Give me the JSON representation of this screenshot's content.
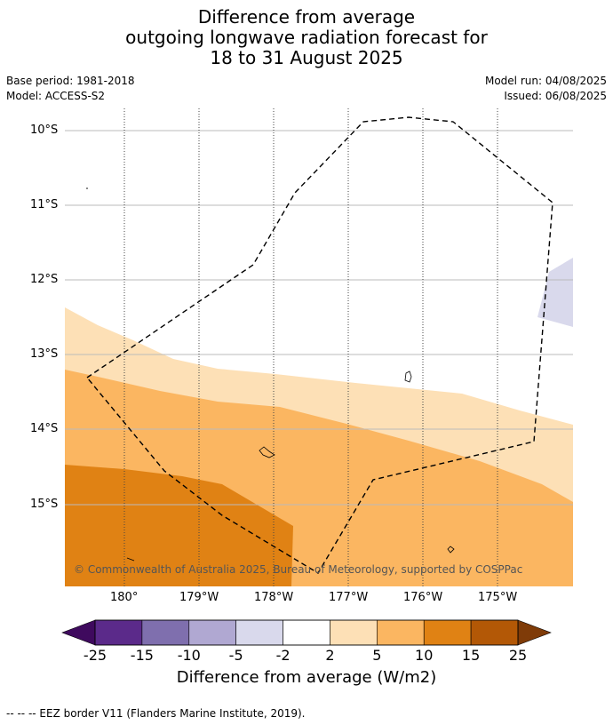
{
  "title": {
    "line1": "Difference from average",
    "line2": "outgoing longwave radiation forecast for",
    "line3": "18 to 31 August 2025"
  },
  "meta": {
    "base_period": "Base period: 1981-2018",
    "model": "Model: ACCESS-S2",
    "model_run": "Model run: 04/08/2025",
    "issued": "Issued: 06/08/2025"
  },
  "map": {
    "lat_labels": [
      "10°S",
      "11°S",
      "12°S",
      "13°S",
      "14°S",
      "15°S"
    ],
    "lon_labels": [
      "180°",
      "179°W",
      "178°W",
      "177°W",
      "176°W",
      "175°W"
    ],
    "copyright": "© Commonwealth of Australia 2025, Bureau of Meteorology, supported by COSPPac"
  },
  "colorbar": {
    "label": "Difference from average (W/m2)",
    "ticks": [
      "-25",
      "-15",
      "-10",
      "-5",
      "-2",
      "2",
      "5",
      "10",
      "15",
      "25"
    ],
    "colors": [
      "#3f0a5e",
      "#5b2a8a",
      "#7f6fae",
      "#b0a8d2",
      "#d9d9ec",
      "#ffffff",
      "#fde0b6",
      "#fbb661",
      "#e08214",
      "#b35806",
      "#7f3b08"
    ]
  },
  "footer": "--  --  -- EEZ border V11 (Flanders Marine Institute, 2019)."
}
